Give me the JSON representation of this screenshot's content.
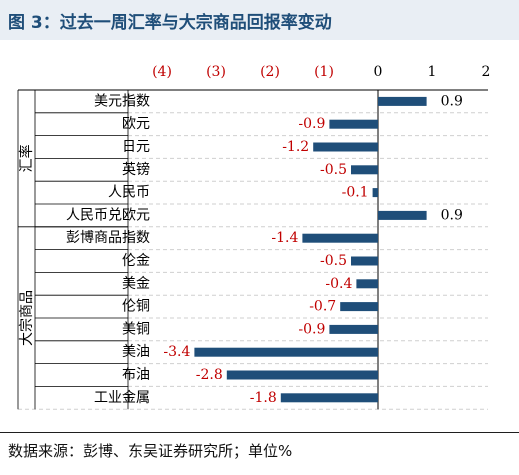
{
  "title": "图 3：过去一周汇率与大宗商品回报率变动",
  "source": "数据来源：彭博、东吴证券研究所；单位%",
  "colors": {
    "bar": "#1f4e79",
    "negative_label": "#c00000",
    "tick_negative": "#c00000",
    "tick_positive": "#000000",
    "title_bg": "#e9eef4",
    "title_text": "#1f4e79"
  },
  "chart_data": {
    "type": "bar",
    "orientation": "horizontal",
    "xlim": [
      -4,
      2
    ],
    "xticks": [
      -4,
      -3,
      -2,
      -1,
      0,
      1,
      2
    ],
    "xtick_labels": [
      "(4)",
      "(3)",
      "(2)",
      "(1)",
      "0",
      "1",
      "2"
    ],
    "groups": [
      {
        "name": "汇率",
        "categories": [
          "美元指数",
          "欧元",
          "日元",
          "英镑",
          "人民币",
          "人民币兑欧元"
        ]
      },
      {
        "name": "大宗商品",
        "categories": [
          "彭博商品指数",
          "伦金",
          "美金",
          "伦铜",
          "美铜",
          "美油",
          "布油",
          "工业金属"
        ]
      }
    ],
    "categories": [
      "美元指数",
      "欧元",
      "日元",
      "英镑",
      "人民币",
      "人民币兑欧元",
      "彭博商品指数",
      "伦金",
      "美金",
      "伦铜",
      "美铜",
      "美油",
      "布油",
      "工业金属"
    ],
    "values": [
      0.9,
      -0.9,
      -1.2,
      -0.5,
      -0.1,
      0.9,
      -1.4,
      -0.5,
      -0.4,
      -0.7,
      -0.9,
      -3.4,
      -2.8,
      -1.8
    ],
    "value_labels": [
      "0.9",
      "-0.9",
      "-1.2",
      "-0.5",
      "-0.1",
      "0.9",
      "-1.4",
      "-0.5",
      "-0.4",
      "-0.7",
      "-0.9",
      "-3.4",
      "-2.8",
      "-1.8"
    ],
    "grid": "horizontal dashed",
    "legend": "none"
  }
}
